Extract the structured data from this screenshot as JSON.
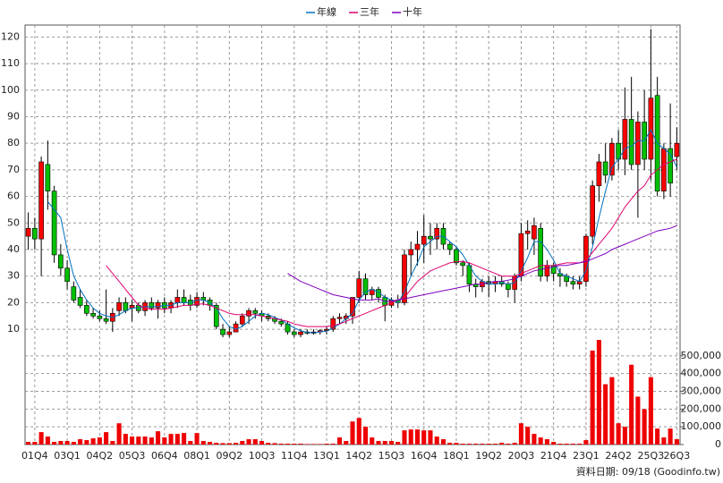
{
  "chart_data": {
    "type": "candlestick",
    "legend": "top",
    "grid": true,
    "source": "資料日期: 09/18 (Goodinfo.tw)",
    "categories": [
      null,
      "01Q4",
      null,
      null,
      null,
      null,
      "03Q1",
      null,
      null,
      null,
      null,
      "04Q2",
      null,
      null,
      null,
      null,
      "05Q3",
      null,
      null,
      null,
      null,
      "06Q4",
      null,
      null,
      null,
      null,
      "08Q1",
      null,
      null,
      null,
      null,
      "09Q2",
      null,
      null,
      null,
      null,
      "10Q3",
      null,
      null,
      null,
      null,
      "11Q4",
      null,
      null,
      null,
      null,
      "13Q1",
      null,
      null,
      null,
      null,
      "14Q2",
      null,
      null,
      null,
      null,
      "15Q3",
      null,
      null,
      null,
      null,
      "16Q4",
      null,
      null,
      null,
      null,
      "18Q1",
      null,
      null,
      null,
      null,
      "19Q2",
      null,
      null,
      null,
      null,
      "20Q3",
      null,
      null,
      null,
      null,
      "21Q4",
      null,
      null,
      null,
      null,
      "23Q1",
      null,
      null,
      null,
      null,
      "24Q2",
      null,
      null,
      null,
      null,
      "25Q3",
      null,
      null,
      null,
      "26Q3"
    ],
    "ohlc": {
      "up_color": "#ff0000",
      "down_color": "#00c000",
      "open": [
        45,
        48,
        44,
        72,
        62,
        38,
        33,
        26,
        22,
        19,
        16,
        15,
        14,
        13,
        17,
        20,
        18,
        19,
        17,
        20,
        18,
        20,
        18,
        20,
        22,
        21,
        19,
        22,
        21,
        19,
        10,
        8,
        9,
        12,
        15,
        17,
        16,
        15,
        14,
        13,
        12,
        9,
        8,
        9,
        8.5,
        9,
        9.5,
        10,
        14,
        14,
        15,
        22,
        29,
        23,
        25,
        22,
        19,
        21,
        20,
        38,
        40,
        42,
        45,
        44,
        48,
        42,
        40,
        35,
        34,
        27,
        26,
        28,
        27,
        28,
        27,
        25,
        30,
        46,
        44,
        48,
        30,
        34,
        31,
        30,
        28,
        27,
        28,
        45,
        64,
        73,
        68,
        80,
        74,
        89,
        72,
        88,
        74,
        98,
        62,
        78,
        75
      ],
      "high": [
        54,
        52,
        75,
        81,
        64,
        42,
        36,
        28,
        25,
        21,
        18,
        17,
        25,
        18,
        22,
        22,
        21,
        20,
        21,
        22,
        21,
        22,
        21,
        25,
        25,
        23,
        24,
        24,
        22,
        20,
        12,
        11,
        13,
        16,
        18,
        18,
        17,
        16,
        15,
        14,
        13,
        10,
        10,
        10,
        10,
        10,
        11,
        15,
        16,
        16,
        22,
        32,
        31,
        26,
        26,
        23,
        22,
        23,
        40,
        43,
        47,
        53,
        50,
        50,
        50,
        43,
        41,
        36,
        35,
        29,
        29,
        30,
        30,
        30,
        28,
        31,
        50,
        51,
        52,
        50,
        36,
        35,
        33,
        31,
        30,
        30,
        46,
        66,
        76,
        80,
        82,
        85,
        101,
        105,
        92,
        100,
        123,
        105,
        80,
        95,
        86
      ],
      "low": [
        40,
        40,
        30,
        55,
        35,
        30,
        25,
        20,
        18,
        15,
        14,
        13,
        12,
        9,
        15,
        16,
        13,
        16,
        15,
        17,
        14,
        16,
        16,
        18,
        19,
        17,
        18,
        19,
        17,
        10,
        7,
        7,
        9,
        11,
        12,
        14,
        13,
        13,
        12,
        11,
        8,
        7,
        7,
        8,
        8,
        8,
        8,
        9,
        12,
        12,
        12,
        20,
        21,
        21,
        20,
        13,
        18,
        18,
        19,
        30,
        34,
        35,
        38,
        40,
        40,
        38,
        34,
        30,
        24,
        22,
        24,
        22,
        24,
        26,
        22,
        20,
        28,
        40,
        38,
        28,
        28,
        28,
        26,
        26,
        25,
        25,
        26,
        42,
        58,
        65,
        66,
        70,
        68,
        70,
        52,
        70,
        66,
        60,
        59,
        60,
        70
      ],
      "close": [
        48,
        44,
        73,
        62,
        38,
        33,
        28,
        21,
        19,
        16,
        15,
        14,
        13,
        16,
        20,
        17,
        19,
        17,
        20,
        18,
        20,
        18,
        20,
        22,
        20,
        19,
        22,
        21,
        19,
        11,
        8,
        9,
        12,
        15,
        17,
        16,
        15,
        14,
        13,
        12,
        9,
        8,
        9,
        8.5,
        9,
        9.5,
        10,
        14,
        14.5,
        15,
        22,
        29,
        23,
        25,
        22,
        19,
        21,
        20,
        38,
        40,
        42,
        45,
        44,
        48,
        42,
        40,
        35,
        34,
        27,
        26,
        28,
        27,
        28,
        27,
        25,
        30,
        46,
        47,
        49,
        30,
        34,
        31,
        30,
        28,
        27,
        28,
        45,
        64,
        73,
        68,
        80,
        74,
        89,
        72,
        88,
        74,
        97,
        62,
        78,
        65,
        80
      ]
    },
    "volume": {
      "color": "#ee0000",
      "axis": "y2",
      "values": [
        15000,
        15000,
        70000,
        45000,
        15000,
        20000,
        20000,
        15000,
        30000,
        25000,
        35000,
        40000,
        70000,
        20000,
        120000,
        60000,
        45000,
        45000,
        45000,
        40000,
        75000,
        40000,
        60000,
        60000,
        65000,
        20000,
        65000,
        20000,
        15000,
        10000,
        8000,
        8000,
        10000,
        20000,
        30000,
        30000,
        20000,
        10000,
        8000,
        5000,
        5000,
        5000,
        5000,
        3000,
        3000,
        3000,
        5000,
        5000,
        40000,
        20000,
        130000,
        150000,
        100000,
        40000,
        20000,
        20000,
        20000,
        15000,
        80000,
        85000,
        85000,
        80000,
        80000,
        45000,
        30000,
        10000,
        10000,
        5000,
        5000,
        5000,
        5000,
        5000,
        5000,
        10000,
        5000,
        10000,
        120000,
        100000,
        60000,
        40000,
        30000,
        15000,
        5000,
        5000,
        5000,
        5000,
        25000,
        530000,
        590000,
        340000,
        380000,
        120000,
        100000,
        450000,
        270000,
        200000,
        380000,
        90000,
        40000,
        90000,
        30000
      ]
    },
    "series": [
      {
        "name": "年線",
        "color": "#0070c0",
        "values": [
          null,
          null,
          null,
          58,
          55,
          52,
          40,
          30,
          25,
          21,
          18,
          16,
          15,
          14.5,
          15.5,
          17,
          18,
          18,
          18.5,
          18.5,
          18.5,
          19,
          19,
          20,
          20,
          20,
          21,
          21,
          20,
          18,
          14,
          11,
          10,
          11,
          13,
          15,
          16,
          15.5,
          14.5,
          13.5,
          12,
          10.5,
          9.5,
          8.8,
          8.7,
          9,
          9.3,
          10.5,
          12,
          14,
          16,
          21,
          24,
          25,
          24,
          22,
          21,
          20,
          24,
          30,
          35,
          41,
          43,
          45,
          45,
          43,
          41,
          38,
          34,
          30,
          28,
          27,
          27,
          27.5,
          27,
          27.5,
          32,
          37,
          43,
          43,
          40,
          36,
          31,
          30,
          29,
          28,
          32,
          41,
          52,
          62,
          71,
          74,
          78,
          79,
          81,
          81,
          85,
          80,
          78,
          76,
          71
        ]
      },
      {
        "name": "三年",
        "color": "#e0006e",
        "values": [
          null,
          null,
          null,
          null,
          null,
          null,
          null,
          null,
          null,
          null,
          null,
          null,
          34,
          31,
          28,
          25,
          22,
          19,
          18,
          17.5,
          17.5,
          17.5,
          18,
          18.5,
          19,
          19,
          19.5,
          19.5,
          19,
          18,
          17,
          16,
          15.5,
          15.5,
          15.5,
          15.5,
          15,
          14.5,
          14,
          13.5,
          13,
          12,
          11.5,
          11,
          11,
          11,
          11,
          11.5,
          12,
          13,
          14,
          15,
          16,
          17,
          18,
          19,
          20,
          21,
          22,
          25,
          28,
          30,
          32,
          33,
          34,
          35,
          35.5,
          35.5,
          35,
          34,
          33,
          32,
          31,
          30,
          30,
          30,
          31,
          32,
          33,
          34,
          34,
          34,
          34.5,
          35,
          35,
          35,
          36,
          39,
          42,
          45,
          48,
          52,
          56,
          59,
          62,
          64,
          68,
          70,
          72,
          73,
          74
        ]
      },
      {
        "name": "十年",
        "color": "#8000c0",
        "values": [
          null,
          null,
          null,
          null,
          null,
          null,
          null,
          null,
          null,
          null,
          null,
          null,
          null,
          null,
          null,
          null,
          null,
          null,
          null,
          null,
          null,
          null,
          null,
          null,
          null,
          null,
          null,
          null,
          null,
          null,
          null,
          null,
          null,
          null,
          null,
          null,
          null,
          null,
          null,
          null,
          31,
          29.5,
          28,
          27,
          26,
          25,
          24,
          23,
          22.5,
          22,
          21.5,
          21,
          21,
          21,
          21.5,
          20.5,
          20.5,
          21,
          21.5,
          22,
          22.5,
          23,
          23.5,
          24,
          24.5,
          25,
          25.5,
          26,
          26.5,
          27,
          27,
          27.5,
          28,
          28,
          28.5,
          29,
          30,
          31,
          32,
          32.5,
          33,
          33.5,
          34,
          34,
          34.5,
          35,
          35.5,
          36.5,
          37.5,
          38.5,
          40,
          41,
          42,
          43,
          44,
          45,
          46,
          47,
          47.5,
          48,
          49
        ]
      }
    ],
    "ylim": [
      6,
      124.5
    ],
    "yticks": [
      10,
      20,
      30,
      40,
      50,
      60,
      70,
      80,
      90,
      100,
      110,
      120
    ],
    "y2lim": [
      0,
      590000
    ],
    "y2ticks": [
      0,
      {
        "value": 100000,
        "label": "100,000"
      },
      {
        "value": 200000,
        "label": "200,000"
      },
      {
        "value": 300000,
        "label": "300,000"
      },
      {
        "value": 400000,
        "label": "400,000"
      },
      {
        "value": 500000,
        "label": "500,000"
      }
    ]
  }
}
